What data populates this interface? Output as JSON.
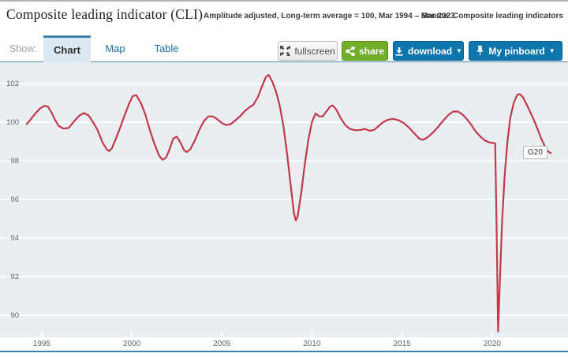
{
  "header": {
    "title": "Composite leading indicator (CLI)",
    "subtitle": "Amplitude adjusted, Long-term average = 100, Mar 1994 – Mar 2023",
    "source": "Source: Composite leading indicators"
  },
  "tabs": {
    "show_label": "Show:",
    "items": [
      {
        "label": "Chart",
        "active": true
      },
      {
        "label": "Map",
        "active": false
      },
      {
        "label": "Table",
        "active": false
      }
    ]
  },
  "toolbar": {
    "fullscreen_label": "fullscreen",
    "share_label": "share",
    "download_label": "download",
    "pinboard_label": "My pinboard",
    "menu_caret": "▼"
  },
  "colors": {
    "line_red": "#c2394a",
    "chart_bg": "#e9eef3",
    "accent_blue": "#0f76ad",
    "accent_green": "#70ad29",
    "tab_line_blue": "#4a8db5",
    "axis_text": "#5a6672"
  },
  "chart_data": {
    "type": "line",
    "title": "Composite leading indicator (CLI)",
    "subtitle": "Amplitude adjusted, Long-term average = 100, Mar 1994 - Mar 2023",
    "xlabel": "",
    "ylabel": "",
    "x_ticks": [
      1995,
      2000,
      2005,
      2010,
      2015,
      2020
    ],
    "y_ticks": [
      90,
      92,
      94,
      96,
      98,
      100,
      102
    ],
    "xlim": [
      1994.0,
      2024.2
    ],
    "ylim": [
      88.8,
      102.8
    ],
    "grid": true,
    "annotation": {
      "label": "G20"
    },
    "series": [
      {
        "name": "G20",
        "color": "#c2394a",
        "points": [
          [
            1994.17,
            99.9
          ],
          [
            1994.4,
            100.15
          ],
          [
            1994.65,
            100.45
          ],
          [
            1994.9,
            100.7
          ],
          [
            1995.15,
            100.85
          ],
          [
            1995.35,
            100.8
          ],
          [
            1995.55,
            100.5
          ],
          [
            1995.75,
            100.1
          ],
          [
            1995.95,
            99.8
          ],
          [
            1996.2,
            99.67
          ],
          [
            1996.5,
            99.7
          ],
          [
            1996.8,
            100.05
          ],
          [
            1997.1,
            100.35
          ],
          [
            1997.35,
            100.47
          ],
          [
            1997.6,
            100.35
          ],
          [
            1997.85,
            100.0
          ],
          [
            1998.1,
            99.6
          ],
          [
            1998.35,
            99.0
          ],
          [
            1998.6,
            98.6
          ],
          [
            1998.75,
            98.5
          ],
          [
            1998.9,
            98.65
          ],
          [
            1999.1,
            99.1
          ],
          [
            1999.35,
            99.7
          ],
          [
            1999.6,
            100.35
          ],
          [
            1999.85,
            100.95
          ],
          [
            2000.05,
            101.35
          ],
          [
            2000.25,
            101.4
          ],
          [
            2000.5,
            101.0
          ],
          [
            2000.75,
            100.4
          ],
          [
            2001.0,
            99.6
          ],
          [
            2001.25,
            98.9
          ],
          [
            2001.5,
            98.3
          ],
          [
            2001.7,
            98.05
          ],
          [
            2001.9,
            98.15
          ],
          [
            2002.1,
            98.6
          ],
          [
            2002.3,
            99.15
          ],
          [
            2002.5,
            99.25
          ],
          [
            2002.7,
            98.95
          ],
          [
            2002.9,
            98.55
          ],
          [
            2003.05,
            98.45
          ],
          [
            2003.25,
            98.6
          ],
          [
            2003.5,
            99.05
          ],
          [
            2003.75,
            99.6
          ],
          [
            2004.0,
            100.05
          ],
          [
            2004.25,
            100.3
          ],
          [
            2004.5,
            100.3
          ],
          [
            2004.75,
            100.15
          ],
          [
            2005.0,
            99.95
          ],
          [
            2005.25,
            99.85
          ],
          [
            2005.5,
            99.9
          ],
          [
            2005.75,
            100.1
          ],
          [
            2006.0,
            100.3
          ],
          [
            2006.25,
            100.55
          ],
          [
            2006.5,
            100.75
          ],
          [
            2006.75,
            100.9
          ],
          [
            2007.0,
            101.3
          ],
          [
            2007.25,
            101.9
          ],
          [
            2007.45,
            102.35
          ],
          [
            2007.6,
            102.45
          ],
          [
            2007.8,
            102.1
          ],
          [
            2008.0,
            101.6
          ],
          [
            2008.2,
            100.9
          ],
          [
            2008.4,
            99.9
          ],
          [
            2008.6,
            98.5
          ],
          [
            2008.8,
            96.9
          ],
          [
            2009.0,
            95.3
          ],
          [
            2009.1,
            94.9
          ],
          [
            2009.2,
            95.1
          ],
          [
            2009.4,
            96.3
          ],
          [
            2009.6,
            97.8
          ],
          [
            2009.8,
            99.1
          ],
          [
            2010.0,
            100.0
          ],
          [
            2010.2,
            100.45
          ],
          [
            2010.4,
            100.3
          ],
          [
            2010.6,
            100.3
          ],
          [
            2010.8,
            100.55
          ],
          [
            2011.0,
            100.8
          ],
          [
            2011.15,
            100.87
          ],
          [
            2011.35,
            100.65
          ],
          [
            2011.6,
            100.2
          ],
          [
            2011.85,
            99.85
          ],
          [
            2012.1,
            99.65
          ],
          [
            2012.4,
            99.58
          ],
          [
            2012.7,
            99.6
          ],
          [
            2012.95,
            99.65
          ],
          [
            2013.2,
            99.55
          ],
          [
            2013.45,
            99.6
          ],
          [
            2013.7,
            99.8
          ],
          [
            2013.95,
            100.0
          ],
          [
            2014.2,
            100.12
          ],
          [
            2014.5,
            100.17
          ],
          [
            2014.8,
            100.1
          ],
          [
            2015.1,
            99.95
          ],
          [
            2015.4,
            99.7
          ],
          [
            2015.7,
            99.4
          ],
          [
            2015.95,
            99.15
          ],
          [
            2016.15,
            99.08
          ],
          [
            2016.4,
            99.2
          ],
          [
            2016.7,
            99.45
          ],
          [
            2017.0,
            99.75
          ],
          [
            2017.3,
            100.1
          ],
          [
            2017.6,
            100.4
          ],
          [
            2017.85,
            100.55
          ],
          [
            2018.1,
            100.55
          ],
          [
            2018.35,
            100.4
          ],
          [
            2018.6,
            100.15
          ],
          [
            2018.85,
            99.85
          ],
          [
            2019.1,
            99.5
          ],
          [
            2019.35,
            99.25
          ],
          [
            2019.6,
            99.05
          ],
          [
            2019.85,
            98.95
          ],
          [
            2020.05,
            98.92
          ],
          [
            2020.17,
            98.9
          ],
          [
            2020.25,
            94.5
          ],
          [
            2020.33,
            89.15
          ],
          [
            2020.42,
            91.5
          ],
          [
            2020.55,
            94.8
          ],
          [
            2020.7,
            97.3
          ],
          [
            2020.85,
            99.0
          ],
          [
            2021.0,
            100.2
          ],
          [
            2021.2,
            101.0
          ],
          [
            2021.4,
            101.42
          ],
          [
            2021.55,
            101.45
          ],
          [
            2021.7,
            101.3
          ],
          [
            2021.9,
            100.95
          ],
          [
            2022.1,
            100.55
          ],
          [
            2022.3,
            100.15
          ],
          [
            2022.5,
            99.7
          ],
          [
            2022.7,
            99.2
          ],
          [
            2022.9,
            98.8
          ],
          [
            2023.05,
            98.55
          ],
          [
            2023.15,
            98.45
          ],
          [
            2023.25,
            98.4
          ]
        ]
      }
    ]
  }
}
